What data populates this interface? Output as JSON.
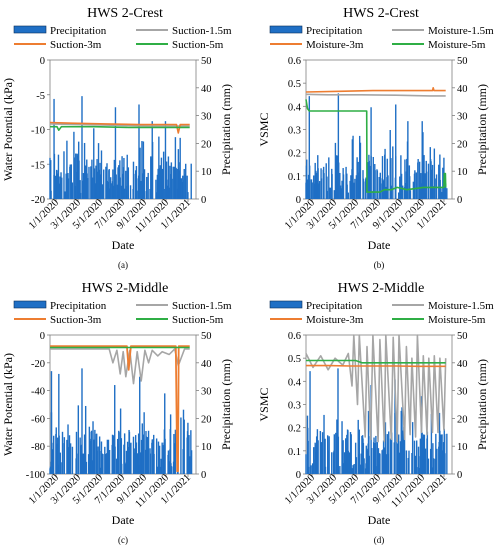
{
  "colors": {
    "precipitation": "#1f6fc5",
    "series_gray": "#a6a6a6",
    "series_orange": "#ed7d31",
    "series_green": "#2fae45",
    "axis": "#7f7f7f",
    "grid": "#d9d9d9"
  },
  "x_tick_labels": [
    "1/1/2020",
    "3/1/2020",
    "5/1/2020",
    "7/1/2020",
    "9/1/2020",
    "11/1/2020",
    "1/1/2021"
  ],
  "chart_data": [
    {
      "id": "a",
      "type": "line",
      "title": "HWS 2-Crest",
      "caption": "(a)",
      "xlabel": "Date",
      "ylabel": "Water Potential (kPa)",
      "y2label": "Precipitation (mm)",
      "ylim": [
        -20,
        0
      ],
      "yticks": [
        0,
        -5,
        -10,
        -15,
        -20
      ],
      "y2lim": [
        0,
        50
      ],
      "y2ticks": [
        0,
        10,
        20,
        30,
        40,
        50
      ],
      "legend": {
        "position": "top",
        "entries": [
          {
            "label": "Precipitation",
            "kind": "bar",
            "color": "#1f6fc5"
          },
          {
            "label": "Suction-1.5m",
            "kind": "line",
            "color": "#a6a6a6"
          },
          {
            "label": "Suction-3m",
            "kind": "line",
            "color": "#ed7d31"
          },
          {
            "label": "Suction-5m",
            "kind": "line",
            "color": "#2fae45"
          }
        ]
      },
      "series": [
        {
          "name": "Suction-1.5m",
          "color": "#a6a6a6",
          "x": [
            "2020-01-01",
            "2020-04-01",
            "2020-07-01",
            "2020-10-01",
            "2021-01-15"
          ],
          "y": [
            -9.2,
            -9.3,
            -9.4,
            -9.5,
            -9.5
          ]
        },
        {
          "name": "Suction-3m",
          "color": "#ed7d31",
          "x": [
            "2020-01-01",
            "2020-03-01",
            "2020-06-01",
            "2020-09-01",
            "2020-12-10",
            "2020-12-15",
            "2020-12-20",
            "2021-01-15"
          ],
          "y": [
            -9.0,
            -9.1,
            -9.2,
            -9.3,
            -9.3,
            -10.5,
            -9.3,
            -9.3
          ]
        },
        {
          "name": "Suction-5m",
          "color": "#2fae45",
          "x": [
            "2020-01-01",
            "2020-01-20",
            "2020-01-25",
            "2020-02-01",
            "2020-05-01",
            "2020-08-01",
            "2020-11-01",
            "2021-01-15"
          ],
          "y": [
            -9.6,
            -9.6,
            -10.1,
            -9.6,
            -9.6,
            -9.7,
            -9.7,
            -9.7
          ]
        }
      ]
    },
    {
      "id": "b",
      "type": "line",
      "title": "HWS 2-Crest",
      "caption": "(b)",
      "xlabel": "Date",
      "ylabel": "VSMC",
      "y2label": "Precipitation (mm)",
      "ylim": [
        0,
        0.6
      ],
      "yticks": [
        0,
        0.1,
        0.2,
        0.3,
        0.4,
        0.5,
        0.6
      ],
      "y2lim": [
        0,
        50
      ],
      "y2ticks": [
        0,
        10,
        20,
        30,
        40,
        50
      ],
      "legend": {
        "position": "top",
        "entries": [
          {
            "label": "Precipitation",
            "kind": "bar",
            "color": "#1f6fc5"
          },
          {
            "label": "Moisture-1.5m",
            "kind": "line",
            "color": "#a6a6a6"
          },
          {
            "label": "Moisture-3m",
            "kind": "line",
            "color": "#ed7d31"
          },
          {
            "label": "Moisture-5m",
            "kind": "line",
            "color": "#2fae45"
          }
        ]
      },
      "series": [
        {
          "name": "Moisture-1.5m",
          "color": "#a6a6a6",
          "x": [
            "2020-01-01",
            "2020-03-01",
            "2020-06-01",
            "2020-09-01",
            "2020-12-01",
            "2021-01-15"
          ],
          "y": [
            0.452,
            0.45,
            0.45,
            0.448,
            0.445,
            0.445
          ]
        },
        {
          "name": "Moisture-3m",
          "color": "#ed7d31",
          "x": [
            "2020-01-01",
            "2020-04-01",
            "2020-07-01",
            "2020-10-01",
            "2020-12-10",
            "2020-12-12",
            "2020-12-14",
            "2021-01-15"
          ],
          "y": [
            0.462,
            0.465,
            0.468,
            0.468,
            0.468,
            0.48,
            0.468,
            0.468
          ]
        },
        {
          "name": "Moisture-5m",
          "color": "#2fae45",
          "x": [
            "2020-01-01",
            "2020-01-05",
            "2020-01-10",
            "2020-06-14",
            "2020-06-15",
            "2020-07-20",
            "2020-08-01",
            "2020-08-20",
            "2020-09-05",
            "2020-10-01",
            "2020-11-15",
            "2021-01-10",
            "2021-01-11",
            "2021-01-14",
            "2021-01-15"
          ],
          "y": [
            0.43,
            0.39,
            0.38,
            0.38,
            0.03,
            0.03,
            0.04,
            0.04,
            0.05,
            0.04,
            0.05,
            0.05,
            0.11,
            0.11,
            0.05
          ]
        }
      ]
    },
    {
      "id": "c",
      "type": "line",
      "title": "HWS 2-Middle",
      "caption": "(c)",
      "xlabel": "Date",
      "ylabel": "Water Potential (kPa)",
      "y2label": "Precipitation (mm)",
      "ylim": [
        -100,
        0
      ],
      "yticks": [
        0,
        -20,
        -40,
        -60,
        -80,
        -100
      ],
      "y2lim": [
        0,
        50
      ],
      "y2ticks": [
        0,
        10,
        20,
        30,
        40,
        50
      ],
      "legend": {
        "position": "top",
        "entries": [
          {
            "label": "Precipitation",
            "kind": "bar",
            "color": "#1f6fc5"
          },
          {
            "label": "Suction-1.5m",
            "kind": "line",
            "color": "#a6a6a6"
          },
          {
            "label": "Suction-3m",
            "kind": "line",
            "color": "#ed7d31"
          },
          {
            "label": "Suction-5m",
            "kind": "line",
            "color": "#2fae45"
          }
        ]
      },
      "series": [
        {
          "name": "Suction-1.5m",
          "color": "#a6a6a6",
          "x": [
            "2020-01-01",
            "2020-06-10",
            "2020-06-20",
            "2020-07-01",
            "2020-07-10",
            "2020-07-18",
            "2020-07-25",
            "2020-08-05",
            "2020-08-15",
            "2020-08-25",
            "2020-09-05",
            "2020-09-15",
            "2020-09-25",
            "2020-10-05",
            "2020-10-20",
            "2020-11-01",
            "2020-11-20",
            "2020-12-05",
            "2020-12-15",
            "2021-01-01",
            "2021-01-15"
          ],
          "y": [
            -10,
            -10,
            -20,
            -11,
            -28,
            -12,
            -30,
            -11,
            -35,
            -12,
            -33,
            -11,
            -20,
            -11,
            -15,
            -12,
            -14,
            -10,
            -22,
            -10,
            -10
          ]
        },
        {
          "name": "Suction-3m",
          "color": "#ed7d31",
          "x": [
            "2020-01-01",
            "2020-03-01",
            "2020-06-01",
            "2020-07-28",
            "2020-08-02",
            "2020-08-08",
            "2020-10-01",
            "2020-12-08",
            "2020-12-12",
            "2020-12-14",
            "2020-12-16",
            "2021-01-15"
          ],
          "y": [
            -8,
            -8,
            -8,
            -8,
            -25,
            -8,
            -8,
            -8,
            -98,
            -98,
            -8,
            -8
          ]
        },
        {
          "name": "Suction-5m",
          "color": "#2fae45",
          "x": [
            "2020-01-01",
            "2020-03-01",
            "2020-06-01",
            "2020-09-01",
            "2020-11-01",
            "2021-01-15"
          ],
          "y": [
            -9,
            -9,
            -9,
            -9,
            -9,
            -9
          ]
        }
      ]
    },
    {
      "id": "d",
      "type": "line",
      "title": "HWS 2-Middle",
      "caption": "(d)",
      "xlabel": "Date",
      "ylabel": "VSMC",
      "y2label": "Precipitation (mm)",
      "ylim": [
        0,
        0.6
      ],
      "yticks": [
        0,
        0.1,
        0.2,
        0.3,
        0.4,
        0.5,
        0.6
      ],
      "y2lim": [
        0,
        50
      ],
      "y2ticks": [
        0,
        10,
        20,
        30,
        40,
        50
      ],
      "legend": {
        "position": "top",
        "entries": [
          {
            "label": "Precipitation",
            "kind": "bar",
            "color": "#1f6fc5"
          },
          {
            "label": "Moisture-1.5m",
            "kind": "line",
            "color": "#a6a6a6"
          },
          {
            "label": "Moisture-3m",
            "kind": "line",
            "color": "#ed7d31"
          },
          {
            "label": "Moisture-5m",
            "kind": "line",
            "color": "#2fae45"
          }
        ]
      },
      "series": [
        {
          "name": "Moisture-1.5m",
          "color": "#a6a6a6",
          "x": [
            "2020-01-01",
            "2020-01-20",
            "2020-02-10",
            "2020-03-01",
            "2020-03-20",
            "2020-04-10",
            "2020-04-25",
            "2020-05-05",
            "2020-05-10",
            "2020-05-20",
            "2020-05-25",
            "2020-06-10",
            "2020-06-15",
            "2020-06-25",
            "2020-07-01",
            "2020-07-15",
            "2020-07-20",
            "2020-08-01",
            "2020-08-05",
            "2020-08-20",
            "2020-08-25",
            "2020-09-05",
            "2020-09-10",
            "2020-09-25",
            "2020-09-30",
            "2020-10-10",
            "2020-10-15",
            "2020-10-25",
            "2020-10-30",
            "2020-11-10",
            "2020-11-15",
            "2020-11-25",
            "2020-11-30",
            "2020-12-10",
            "2020-12-15",
            "2020-12-25",
            "2020-12-30",
            "2021-01-10",
            "2021-01-15"
          ],
          "y": [
            0.52,
            0.46,
            0.51,
            0.45,
            0.5,
            0.47,
            0.52,
            0.38,
            0.6,
            0.3,
            0.6,
            0.16,
            0.55,
            0.15,
            0.6,
            0.14,
            0.58,
            0.14,
            0.6,
            0.15,
            0.59,
            0.14,
            0.6,
            0.15,
            0.55,
            0.17,
            0.5,
            0.16,
            0.6,
            0.18,
            0.51,
            0.17,
            0.5,
            0.18,
            0.51,
            0.18,
            0.5,
            0.19,
            0.5
          ]
        },
        {
          "name": "Moisture-3m",
          "color": "#ed7d31",
          "x": [
            "2020-01-01",
            "2020-03-01",
            "2020-05-01",
            "2020-07-01",
            "2020-09-01",
            "2020-11-01",
            "2021-01-15"
          ],
          "y": [
            0.468,
            0.468,
            0.466,
            0.466,
            0.466,
            0.465,
            0.465
          ]
        },
        {
          "name": "Moisture-5m",
          "color": "#2fae45",
          "x": [
            "2020-01-01",
            "2020-03-01",
            "2020-05-15",
            "2020-06-01",
            "2020-09-01",
            "2020-11-01",
            "2021-01-15"
          ],
          "y": [
            0.49,
            0.49,
            0.49,
            0.48,
            0.48,
            0.48,
            0.48
          ]
        }
      ]
    }
  ]
}
